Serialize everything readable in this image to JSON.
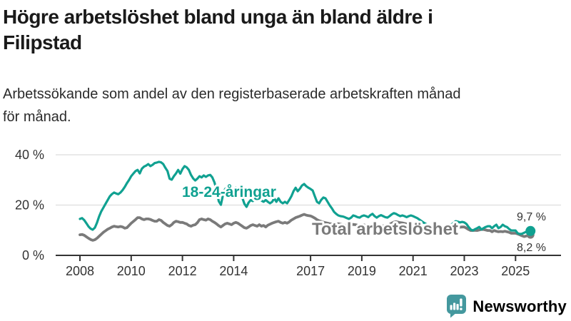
{
  "title_lines": [
    "Högre arbetslöshet bland unga än bland äldre i",
    "Filipstad"
  ],
  "subtitle_lines": [
    "Arbetssökande som andel av den registerbaserade arbetskraften månad",
    "för månad."
  ],
  "footer": {
    "brand": "Newsworthy",
    "brand_color": "#3e959b",
    "logo_icon": "bar-chart-speech-bubble-icon"
  },
  "chart_data": {
    "type": "line",
    "title": "Högre arbetslöshet bland unga än bland äldre i Filipstad",
    "subtitle": "Arbetssökande som andel av den registerbaserade arbetskraften månad för månad.",
    "x_start_year": 2008,
    "x_months_per_point": 1,
    "x_tick_years": [
      2008,
      2010,
      2012,
      2014,
      2017,
      2019,
      2021,
      2023,
      2025
    ],
    "y_ticks": [
      {
        "value": 0,
        "label": "0 %"
      },
      {
        "value": 20,
        "label": "20 %"
      },
      {
        "value": 40,
        "label": "40 %"
      }
    ],
    "ylim": [
      0,
      44
    ],
    "grid": "horizontal",
    "axis_color": "#333333",
    "grid_color": "#e2e2e2",
    "legend_position": "inline-labels",
    "series": [
      {
        "name": "18-24-åringar",
        "label_text": "18-24-åringar",
        "color": "#10a191",
        "width": 3.2,
        "end_label": "9,7 %",
        "end_value": 9.7,
        "values": [
          14.5,
          14.8,
          14.0,
          12.8,
          11.5,
          10.6,
          10.2,
          11.0,
          13.0,
          15.5,
          17.5,
          19.0,
          20.5,
          22.0,
          23.5,
          24.4,
          25.0,
          24.6,
          24.3,
          25.0,
          26.0,
          27.2,
          28.7,
          30.0,
          31.5,
          32.5,
          33.5,
          34.0,
          32.6,
          34.5,
          35.3,
          35.7,
          36.3,
          35.5,
          36.0,
          36.7,
          36.9,
          37.2,
          37.0,
          36.3,
          34.8,
          33.5,
          30.5,
          30.1,
          31.5,
          32.6,
          34.0,
          32.5,
          34.3,
          35.5,
          35.0,
          34.0,
          32.0,
          30.6,
          29.8,
          30.5,
          31.5,
          31.0,
          31.8,
          31.2,
          31.8,
          32.0,
          31.0,
          29.0,
          26.0,
          21.5,
          20.1,
          24.0,
          26.4,
          26.9,
          26.4,
          26.0,
          26.5,
          27.0,
          26.4,
          25.0,
          23.0,
          20.5,
          19.3,
          21.0,
          22.0,
          21.6,
          22.1,
          21.8,
          22.1,
          21.8,
          21.3,
          22.0,
          21.3,
          20.7,
          21.3,
          22.7,
          21.3,
          22.7,
          21.3,
          20.7,
          21.3,
          20.7,
          22.0,
          23.5,
          25.5,
          26.9,
          25.5,
          26.5,
          27.8,
          28.4,
          27.5,
          26.9,
          26.4,
          25.8,
          23.5,
          21.3,
          20.7,
          22.1,
          23.0,
          22.7,
          21.3,
          19.9,
          18.7,
          17.3,
          16.5,
          15.9,
          15.6,
          15.5,
          15.2,
          14.8,
          14.5,
          15.0,
          15.9,
          15.6,
          15.2,
          15.0,
          15.6,
          15.9,
          15.6,
          15.2,
          16.0,
          16.5,
          15.6,
          15.0,
          15.6,
          16.0,
          15.6,
          15.2,
          15.0,
          15.6,
          16.3,
          16.8,
          16.5,
          16.0,
          15.6,
          15.9,
          15.6,
          15.2,
          15.6,
          15.9,
          15.6,
          15.2,
          14.8,
          14.2,
          13.6,
          13.0,
          12.5,
          12.0,
          11.6,
          11.0,
          10.5,
          10.2,
          10.0,
          9.8,
          9.6,
          9.4,
          10.2,
          11.3,
          12.2,
          13.0,
          13.6,
          13.4,
          13.1,
          13.3,
          13.1,
          12.5,
          11.3,
          10.3,
          9.9,
          10.4,
          10.8,
          11.3,
          10.3,
          10.8,
          11.3,
          11.6,
          11.6,
          10.8,
          11.6,
          12.2,
          10.8,
          11.3,
          12.2,
          11.6,
          11.3,
          10.5,
          9.9,
          9.9,
          9.9,
          8.8,
          8.5,
          8.6,
          9.0,
          9.4,
          9.6,
          9.7
        ]
      },
      {
        "name": "Total arbetslöshet",
        "label_text": "Total arbetslöshet",
        "color": "#7a7a7a",
        "width": 3.8,
        "end_label": "8,2 %",
        "end_value": 8.2,
        "values": [
          8.2,
          8.3,
          8.0,
          7.4,
          6.8,
          6.3,
          6.0,
          6.2,
          6.8,
          7.6,
          8.4,
          9.2,
          9.8,
          10.4,
          10.8,
          11.3,
          11.6,
          11.4,
          11.3,
          11.5,
          11.3,
          10.8,
          11.0,
          11.9,
          12.8,
          13.5,
          14.2,
          15.0,
          15.0,
          14.5,
          14.2,
          14.5,
          14.5,
          14.3,
          13.9,
          13.6,
          13.6,
          14.2,
          13.9,
          13.1,
          12.5,
          11.9,
          11.6,
          12.2,
          13.1,
          13.6,
          13.4,
          13.1,
          13.1,
          12.8,
          12.5,
          11.9,
          11.6,
          12.0,
          12.2,
          13.0,
          14.2,
          14.5,
          14.2,
          14.0,
          14.5,
          14.2,
          13.6,
          13.1,
          12.5,
          11.8,
          11.3,
          11.9,
          12.5,
          12.8,
          12.5,
          12.2,
          12.8,
          13.1,
          12.8,
          12.2,
          11.6,
          11.0,
          10.8,
          11.3,
          11.9,
          12.2,
          11.9,
          11.6,
          12.2,
          11.6,
          11.9,
          11.3,
          12.0,
          12.4,
          12.8,
          13.1,
          13.4,
          13.6,
          13.1,
          12.8,
          13.1,
          12.8,
          13.3,
          14.0,
          14.5,
          15.0,
          15.3,
          15.6,
          16.0,
          16.3,
          16.0,
          15.8,
          15.7,
          15.3,
          14.8,
          14.2,
          13.8,
          13.5,
          13.2,
          13.0,
          12.8,
          12.6,
          12.5,
          12.4,
          12.5,
          12.6,
          12.4,
          12.2,
          12.0,
          11.8,
          11.9,
          12.1,
          12.3,
          12.2,
          12.0,
          11.9,
          12.0,
          12.1,
          11.9,
          11.7,
          11.6,
          11.5,
          11.6,
          11.8,
          11.9,
          11.8,
          11.7,
          11.8,
          12.0,
          12.3,
          12.8,
          13.2,
          13.4,
          13.2,
          13.0,
          12.9,
          12.7,
          12.5,
          12.4,
          12.3,
          12.2,
          12.0,
          11.8,
          11.5,
          11.2,
          10.9,
          10.6,
          10.4,
          10.2,
          10.0,
          9.9,
          9.9,
          9.9,
          9.8,
          9.9,
          10.3,
          10.8,
          11.3,
          11.5,
          11.6,
          11.5,
          11.3,
          11.2,
          11.3,
          11.3,
          10.8,
          10.3,
          9.9,
          9.9,
          10.0,
          9.9,
          10.1,
          10.3,
          10.3,
          10.1,
          9.9,
          9.9,
          9.4,
          9.9,
          9.6,
          9.4,
          9.5,
          9.4,
          9.6,
          9.4,
          9.2,
          8.8,
          8.8,
          8.8,
          8.5,
          8.2,
          7.8,
          7.5,
          7.7,
          8.0,
          8.2
        ]
      }
    ]
  }
}
